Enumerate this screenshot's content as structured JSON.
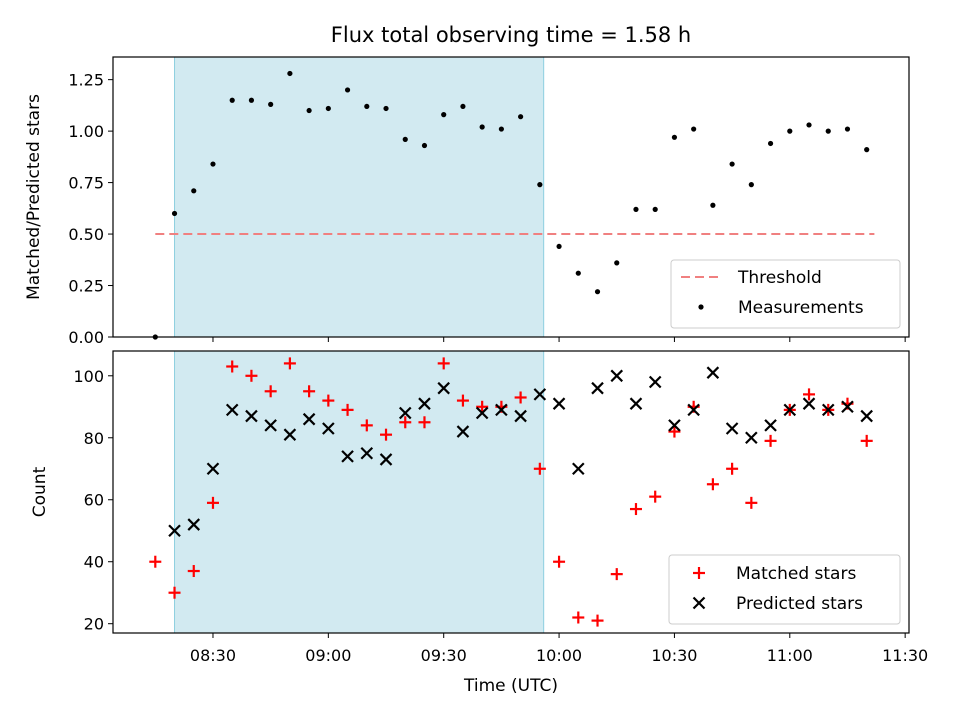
{
  "chart_data": [
    {
      "type": "scatter",
      "title": "Flux total observing time = 1.58 h",
      "ylabel": "Matched/Predicted stars",
      "ylim": [
        0,
        1.36
      ],
      "yticks": [
        0.0,
        0.25,
        0.5,
        0.75,
        1.0,
        1.25
      ],
      "ytick_labels": [
        "0.00",
        "0.25",
        "0.50",
        "0.75",
        "1.00",
        "1.25"
      ],
      "threshold": {
        "label": "Threshold",
        "value": 0.5,
        "x_start": "08:15",
        "x_end": "11:22",
        "color": "#f08080"
      },
      "shaded_interval": {
        "start": "08:20",
        "end": "09:56",
        "color": "#add8e6"
      },
      "legend_position": "lower right",
      "series": [
        {
          "name": "Measurements",
          "marker": "dot",
          "color": "#000000",
          "points": [
            [
              "08:15",
              0.0
            ],
            [
              "08:20",
              0.6
            ],
            [
              "08:25",
              0.71
            ],
            [
              "08:30",
              0.84
            ],
            [
              "08:35",
              1.15
            ],
            [
              "08:40",
              1.15
            ],
            [
              "08:45",
              1.13
            ],
            [
              "08:50",
              1.28
            ],
            [
              "08:55",
              1.1
            ],
            [
              "09:00",
              1.11
            ],
            [
              "09:05",
              1.2
            ],
            [
              "09:10",
              1.12
            ],
            [
              "09:15",
              1.11
            ],
            [
              "09:20",
              0.96
            ],
            [
              "09:25",
              0.93
            ],
            [
              "09:30",
              1.08
            ],
            [
              "09:35",
              1.12
            ],
            [
              "09:40",
              1.02
            ],
            [
              "09:45",
              1.01
            ],
            [
              "09:50",
              1.07
            ],
            [
              "09:55",
              0.74
            ],
            [
              "10:00",
              0.44
            ],
            [
              "10:05",
              0.31
            ],
            [
              "10:10",
              0.22
            ],
            [
              "10:15",
              0.36
            ],
            [
              "10:20",
              0.62
            ],
            [
              "10:25",
              0.62
            ],
            [
              "10:30",
              0.97
            ],
            [
              "10:35",
              1.01
            ],
            [
              "10:40",
              0.64
            ],
            [
              "10:45",
              0.84
            ],
            [
              "10:50",
              0.74
            ],
            [
              "10:55",
              0.94
            ],
            [
              "11:00",
              1.0
            ],
            [
              "11:05",
              1.03
            ],
            [
              "11:10",
              1.0
            ],
            [
              "11:15",
              1.01
            ],
            [
              "11:20",
              0.91
            ]
          ]
        }
      ]
    },
    {
      "type": "scatter",
      "xlabel": "Time (UTC)",
      "ylabel": "Count",
      "ylim": [
        17,
        108
      ],
      "yticks": [
        20,
        40,
        60,
        80,
        100
      ],
      "ytick_labels": [
        "20",
        "40",
        "60",
        "80",
        "100"
      ],
      "xlim": [
        "08:04",
        "11:31"
      ],
      "xticks": [
        "08:30",
        "09:00",
        "09:30",
        "10:00",
        "10:30",
        "11:00",
        "11:30"
      ],
      "xtick_labels": [
        "08:30",
        "09:00",
        "09:30",
        "10:00",
        "10:30",
        "11:00",
        "11:30"
      ],
      "shaded_interval": {
        "start": "08:20",
        "end": "09:56",
        "color": "#add8e6"
      },
      "legend_position": "lower right",
      "series": [
        {
          "name": "Matched stars",
          "marker": "plus",
          "color": "#ff0000",
          "points": [
            [
              "08:15",
              40
            ],
            [
              "08:20",
              30
            ],
            [
              "08:25",
              37
            ],
            [
              "08:30",
              59
            ],
            [
              "08:35",
              103
            ],
            [
              "08:40",
              100
            ],
            [
              "08:45",
              95
            ],
            [
              "08:50",
              104
            ],
            [
              "08:55",
              95
            ],
            [
              "09:00",
              92
            ],
            [
              "09:05",
              89
            ],
            [
              "09:10",
              84
            ],
            [
              "09:15",
              81
            ],
            [
              "09:20",
              85
            ],
            [
              "09:25",
              85
            ],
            [
              "09:30",
              104
            ],
            [
              "09:35",
              92
            ],
            [
              "09:40",
              90
            ],
            [
              "09:45",
              90
            ],
            [
              "09:50",
              93
            ],
            [
              "09:55",
              70
            ],
            [
              "10:00",
              40
            ],
            [
              "10:05",
              22
            ],
            [
              "10:10",
              21
            ],
            [
              "10:15",
              36
            ],
            [
              "10:20",
              57
            ],
            [
              "10:25",
              61
            ],
            [
              "10:30",
              82
            ],
            [
              "10:35",
              90
            ],
            [
              "10:40",
              65
            ],
            [
              "10:45",
              70
            ],
            [
              "10:50",
              59
            ],
            [
              "10:55",
              79
            ],
            [
              "11:00",
              89
            ],
            [
              "11:05",
              94
            ],
            [
              "11:10",
              89
            ],
            [
              "11:15",
              91
            ],
            [
              "11:20",
              79
            ]
          ]
        },
        {
          "name": "Predicted stars",
          "marker": "x",
          "color": "#000000",
          "points": [
            [
              "08:20",
              50
            ],
            [
              "08:25",
              52
            ],
            [
              "08:30",
              70
            ],
            [
              "08:35",
              89
            ],
            [
              "08:40",
              87
            ],
            [
              "08:45",
              84
            ],
            [
              "08:50",
              81
            ],
            [
              "08:55",
              86
            ],
            [
              "09:00",
              83
            ],
            [
              "09:05",
              74
            ],
            [
              "09:10",
              75
            ],
            [
              "09:15",
              73
            ],
            [
              "09:20",
              88
            ],
            [
              "09:25",
              91
            ],
            [
              "09:30",
              96
            ],
            [
              "09:35",
              82
            ],
            [
              "09:40",
              88
            ],
            [
              "09:45",
              89
            ],
            [
              "09:50",
              87
            ],
            [
              "09:55",
              94
            ],
            [
              "10:00",
              91
            ],
            [
              "10:05",
              70
            ],
            [
              "10:10",
              96
            ],
            [
              "10:15",
              100
            ],
            [
              "10:20",
              91
            ],
            [
              "10:25",
              98
            ],
            [
              "10:30",
              84
            ],
            [
              "10:35",
              89
            ],
            [
              "10:40",
              101
            ],
            [
              "10:45",
              83
            ],
            [
              "10:50",
              80
            ],
            [
              "10:55",
              84
            ],
            [
              "11:00",
              89
            ],
            [
              "11:05",
              91
            ],
            [
              "11:10",
              89
            ],
            [
              "11:15",
              90
            ],
            [
              "11:20",
              87
            ]
          ]
        }
      ]
    }
  ]
}
